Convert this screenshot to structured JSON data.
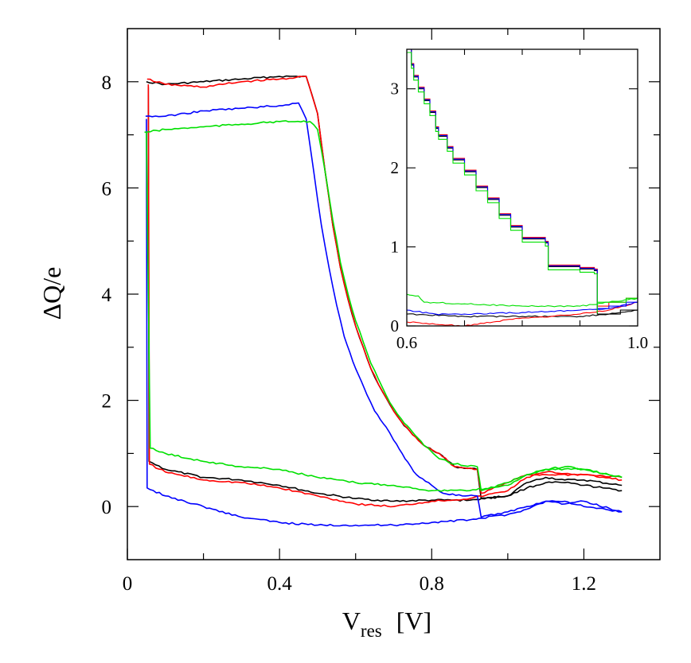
{
  "chart_data": [
    {
      "type": "line",
      "role": "main",
      "ylabel": "ΔQ/e",
      "xlabel": {
        "main": "V",
        "sub": "res",
        "unit": "[V]"
      },
      "xlim": [
        0,
        1.4
      ],
      "ylim": [
        -1,
        9
      ],
      "xticks": [
        0,
        0.4,
        0.8,
        1.2
      ],
      "xtick_labels": [
        "0",
        "0.4",
        "0.8",
        "1.2"
      ],
      "xminor": [
        0.2,
        0.6,
        1.0
      ],
      "yticks": [
        0,
        2,
        4,
        6,
        8
      ],
      "ytick_labels": [
        "0",
        "2",
        "4",
        "6",
        "8"
      ],
      "yminor": [
        1,
        3,
        5,
        7
      ],
      "series": [
        {
          "name": "black",
          "color": "#000000",
          "up": [
            [
              0.05,
              8.0
            ],
            [
              0.1,
              7.95
            ],
            [
              0.2,
              8.0
            ],
            [
              0.3,
              8.05
            ],
            [
              0.4,
              8.1
            ],
            [
              0.47,
              8.1
            ],
            [
              0.5,
              7.4
            ],
            [
              0.52,
              6.3
            ],
            [
              0.54,
              5.3
            ],
            [
              0.56,
              4.5
            ],
            [
              0.58,
              3.9
            ],
            [
              0.6,
              3.4
            ],
            [
              0.62,
              3.0
            ],
            [
              0.64,
              2.6
            ],
            [
              0.66,
              2.3
            ],
            [
              0.68,
              2.05
            ],
            [
              0.7,
              1.8
            ],
            [
              0.72,
              1.6
            ],
            [
              0.75,
              1.35
            ],
            [
              0.78,
              1.15
            ],
            [
              0.82,
              1.0
            ],
            [
              0.86,
              0.75
            ],
            [
              0.92,
              0.7
            ],
            [
              0.93,
              0.15
            ],
            [
              1.0,
              0.2
            ],
            [
              1.05,
              0.35
            ],
            [
              1.1,
              0.45
            ],
            [
              1.15,
              0.45
            ],
            [
              1.2,
              0.4
            ],
            [
              1.25,
              0.35
            ],
            [
              1.3,
              0.3
            ]
          ],
          "down": [
            [
              0.055,
              7.9
            ],
            [
              0.057,
              0.85
            ],
            [
              0.1,
              0.7
            ],
            [
              0.2,
              0.55
            ],
            [
              0.3,
              0.5
            ],
            [
              0.4,
              0.4
            ],
            [
              0.5,
              0.25
            ],
            [
              0.6,
              0.15
            ],
            [
              0.7,
              0.1
            ],
            [
              0.8,
              0.12
            ],
            [
              0.9,
              0.12
            ],
            [
              1.0,
              0.2
            ],
            [
              1.05,
              0.45
            ],
            [
              1.1,
              0.55
            ],
            [
              1.15,
              0.5
            ],
            [
              1.2,
              0.5
            ],
            [
              1.3,
              0.4
            ]
          ]
        },
        {
          "name": "red",
          "color": "#ff0000",
          "up": [
            [
              0.052,
              8.05
            ],
            [
              0.1,
              7.95
            ],
            [
              0.2,
              7.9
            ],
            [
              0.3,
              8.0
            ],
            [
              0.4,
              8.05
            ],
            [
              0.47,
              8.1
            ],
            [
              0.5,
              7.4
            ],
            [
              0.52,
              6.3
            ],
            [
              0.54,
              5.3
            ],
            [
              0.56,
              4.5
            ],
            [
              0.58,
              3.9
            ],
            [
              0.6,
              3.4
            ],
            [
              0.62,
              3.0
            ],
            [
              0.64,
              2.6
            ],
            [
              0.66,
              2.3
            ],
            [
              0.68,
              2.05
            ],
            [
              0.7,
              1.8
            ],
            [
              0.72,
              1.6
            ],
            [
              0.75,
              1.35
            ],
            [
              0.78,
              1.15
            ],
            [
              0.82,
              1.0
            ],
            [
              0.86,
              0.75
            ],
            [
              0.92,
              0.7
            ],
            [
              0.93,
              0.25
            ],
            [
              1.0,
              0.45
            ],
            [
              1.05,
              0.6
            ],
            [
              1.1,
              0.6
            ],
            [
              1.2,
              0.6
            ],
            [
              1.3,
              0.55
            ]
          ],
          "down": [
            [
              0.055,
              7.95
            ],
            [
              0.058,
              0.8
            ],
            [
              0.1,
              0.65
            ],
            [
              0.2,
              0.5
            ],
            [
              0.3,
              0.45
            ],
            [
              0.4,
              0.35
            ],
            [
              0.5,
              0.2
            ],
            [
              0.6,
              0.05
            ],
            [
              0.7,
              0.0
            ],
            [
              0.8,
              0.1
            ],
            [
              0.9,
              0.15
            ],
            [
              1.0,
              0.3
            ],
            [
              1.05,
              0.55
            ],
            [
              1.1,
              0.65
            ],
            [
              1.2,
              0.6
            ],
            [
              1.3,
              0.5
            ]
          ]
        },
        {
          "name": "blue",
          "color": "#0000ff",
          "up": [
            [
              0.048,
              7.35
            ],
            [
              0.1,
              7.35
            ],
            [
              0.2,
              7.45
            ],
            [
              0.3,
              7.5
            ],
            [
              0.4,
              7.55
            ],
            [
              0.45,
              7.6
            ],
            [
              0.47,
              7.3
            ],
            [
              0.49,
              6.3
            ],
            [
              0.51,
              5.3
            ],
            [
              0.53,
              4.5
            ],
            [
              0.55,
              3.8
            ],
            [
              0.57,
              3.2
            ],
            [
              0.6,
              2.6
            ],
            [
              0.63,
              2.1
            ],
            [
              0.65,
              1.8
            ],
            [
              0.68,
              1.5
            ],
            [
              0.7,
              1.25
            ],
            [
              0.73,
              0.9
            ],
            [
              0.76,
              0.6
            ],
            [
              0.8,
              0.4
            ],
            [
              0.83,
              0.25
            ],
            [
              0.88,
              0.2
            ],
            [
              0.92,
              0.2
            ],
            [
              0.93,
              -0.2
            ],
            [
              1.0,
              -0.1
            ],
            [
              1.05,
              0.0
            ],
            [
              1.1,
              0.1
            ],
            [
              1.15,
              0.1
            ],
            [
              1.2,
              0.0
            ],
            [
              1.3,
              -0.1
            ]
          ],
          "down": [
            [
              0.05,
              7.3
            ],
            [
              0.052,
              0.35
            ],
            [
              0.1,
              0.2
            ],
            [
              0.2,
              0.0
            ],
            [
              0.3,
              -0.2
            ],
            [
              0.4,
              -0.3
            ],
            [
              0.5,
              -0.35
            ],
            [
              0.6,
              -0.35
            ],
            [
              0.7,
              -0.35
            ],
            [
              0.8,
              -0.3
            ],
            [
              0.9,
              -0.25
            ],
            [
              1.0,
              -0.15
            ],
            [
              1.05,
              -0.05
            ],
            [
              1.1,
              0.1
            ],
            [
              1.15,
              0.05
            ],
            [
              1.2,
              0.1
            ],
            [
              1.3,
              -0.1
            ]
          ]
        },
        {
          "name": "green",
          "color": "#00e000",
          "up": [
            [
              0.045,
              7.05
            ],
            [
              0.1,
              7.1
            ],
            [
              0.2,
              7.15
            ],
            [
              0.3,
              7.2
            ],
            [
              0.4,
              7.25
            ],
            [
              0.48,
              7.25
            ],
            [
              0.5,
              7.1
            ],
            [
              0.52,
              6.3
            ],
            [
              0.54,
              5.4
            ],
            [
              0.56,
              4.6
            ],
            [
              0.58,
              4.0
            ],
            [
              0.6,
              3.5
            ],
            [
              0.62,
              3.1
            ],
            [
              0.64,
              2.7
            ],
            [
              0.66,
              2.4
            ],
            [
              0.68,
              2.1
            ],
            [
              0.7,
              1.85
            ],
            [
              0.72,
              1.65
            ],
            [
              0.75,
              1.4
            ],
            [
              0.78,
              1.15
            ],
            [
              0.82,
              0.9
            ],
            [
              0.86,
              0.8
            ],
            [
              0.92,
              0.75
            ],
            [
              0.93,
              0.3
            ],
            [
              1.0,
              0.45
            ],
            [
              1.05,
              0.6
            ],
            [
              1.1,
              0.7
            ],
            [
              1.2,
              0.7
            ],
            [
              1.3,
              0.55
            ]
          ],
          "down": [
            [
              0.05,
              7.05
            ],
            [
              0.06,
              1.1
            ],
            [
              0.1,
              1.0
            ],
            [
              0.2,
              0.85
            ],
            [
              0.3,
              0.75
            ],
            [
              0.4,
              0.7
            ],
            [
              0.5,
              0.55
            ],
            [
              0.6,
              0.45
            ],
            [
              0.7,
              0.4
            ],
            [
              0.8,
              0.3
            ],
            [
              0.9,
              0.3
            ],
            [
              1.0,
              0.4
            ],
            [
              1.05,
              0.6
            ],
            [
              1.1,
              0.7
            ],
            [
              1.15,
              0.75
            ],
            [
              1.2,
              0.7
            ],
            [
              1.3,
              0.55
            ]
          ]
        }
      ]
    },
    {
      "type": "line",
      "role": "inset",
      "xlim": [
        0.6,
        1.0
      ],
      "ylim": [
        0,
        3.5
      ],
      "xtick_labels": [
        "0.6",
        "1.0"
      ],
      "xticks": [
        0.6,
        1.0
      ],
      "xminor": [
        0.7,
        0.8,
        0.9
      ],
      "yticks": [
        0,
        1,
        2,
        3
      ],
      "ytick_labels": [
        "0",
        "1",
        "2",
        "3"
      ],
      "staircase": [
        [
          0.6,
          3.5
        ],
        [
          0.608,
          3.3
        ],
        [
          0.612,
          3.15
        ],
        [
          0.62,
          3.0
        ],
        [
          0.63,
          2.85
        ],
        [
          0.64,
          2.7
        ],
        [
          0.65,
          2.5
        ],
        [
          0.655,
          2.4
        ],
        [
          0.67,
          2.25
        ],
        [
          0.68,
          2.1
        ],
        [
          0.7,
          1.95
        ],
        [
          0.72,
          1.75
        ],
        [
          0.74,
          1.6
        ],
        [
          0.76,
          1.4
        ],
        [
          0.78,
          1.25
        ],
        [
          0.8,
          1.1
        ],
        [
          0.84,
          1.05
        ],
        [
          0.845,
          0.75
        ],
        [
          0.9,
          0.72
        ],
        [
          0.925,
          0.7
        ],
        [
          0.93,
          0.2
        ]
      ],
      "series": [
        {
          "name": "black",
          "color": "#000000",
          "step_offset": 0.0,
          "after": [
            [
              0.93,
              0.15
            ],
            [
              0.95,
              0.15
            ],
            [
              0.97,
              0.2
            ],
            [
              1.0,
              0.2
            ]
          ],
          "lower": [
            [
              0.6,
              0.15
            ],
            [
              0.7,
              0.12
            ],
            [
              0.8,
              0.12
            ],
            [
              0.9,
              0.12
            ],
            [
              0.95,
              0.15
            ],
            [
              1.0,
              0.2
            ]
          ]
        },
        {
          "name": "red",
          "color": "#ff0000",
          "step_offset": 0.02,
          "after": [
            [
              0.93,
              0.25
            ],
            [
              0.95,
              0.3
            ],
            [
              0.98,
              0.35
            ],
            [
              1.0,
              0.45
            ]
          ],
          "lower": [
            [
              0.6,
              0.05
            ],
            [
              0.65,
              0.02
            ],
            [
              0.7,
              0.0
            ],
            [
              0.75,
              0.05
            ],
            [
              0.8,
              0.1
            ],
            [
              0.85,
              0.12
            ],
            [
              0.9,
              0.15
            ],
            [
              0.95,
              0.2
            ],
            [
              1.0,
              0.3
            ]
          ]
        },
        {
          "name": "blue",
          "color": "#0000ff",
          "step_offset": 0.01,
          "after": [
            [
              0.93,
              0.22
            ],
            [
              0.95,
              0.25
            ],
            [
              0.98,
              0.3
            ],
            [
              1.0,
              0.4
            ]
          ],
          "lower": [
            [
              0.6,
              0.2
            ],
            [
              0.65,
              0.15
            ],
            [
              0.7,
              0.15
            ],
            [
              0.8,
              0.17
            ],
            [
              0.9,
              0.2
            ],
            [
              0.95,
              0.22
            ],
            [
              1.0,
              0.3
            ]
          ]
        },
        {
          "name": "green",
          "color": "#00e000",
          "step_offset": -0.04,
          "after": [
            [
              0.93,
              0.3
            ],
            [
              0.95,
              0.3
            ],
            [
              0.98,
              0.35
            ],
            [
              1.0,
              0.4
            ]
          ],
          "lower": [
            [
              0.6,
              0.4
            ],
            [
              0.62,
              0.38
            ],
            [
              0.63,
              0.3
            ],
            [
              0.7,
              0.28
            ],
            [
              0.8,
              0.25
            ],
            [
              0.85,
              0.25
            ],
            [
              0.9,
              0.25
            ],
            [
              0.95,
              0.3
            ],
            [
              1.0,
              0.35
            ]
          ]
        }
      ]
    }
  ]
}
